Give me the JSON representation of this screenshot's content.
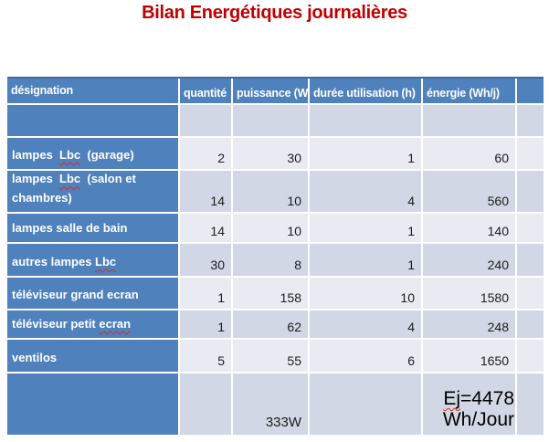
{
  "title": {
    "text": "Bilan Energétiques journalières"
  },
  "colors": {
    "title_red": "#C00000",
    "header_blue": "#4F81BD",
    "band_dark": "#D1D7E4",
    "band_light": "#E9EBF3",
    "spellcheck_red": "#DD2B1C"
  },
  "table": {
    "columns": [
      {
        "key": "designation",
        "label": "désignation"
      },
      {
        "key": "quantite",
        "label": "quantité"
      },
      {
        "key": "puissance",
        "label": "puissance (W)"
      },
      {
        "key": "duree",
        "label": "durée utilisation (h)"
      },
      {
        "key": "energie",
        "label": "énergie (Wh/j)"
      },
      {
        "key": "extra",
        "label": ""
      }
    ],
    "rows": [
      {
        "designation": [],
        "quantite": "",
        "puissance": "",
        "duree": "",
        "energie": [],
        "extra": ""
      },
      {
        "designation": [
          {
            "t": "lampes  "
          },
          {
            "t": "Lbc",
            "misspelled": true
          },
          {
            "t": "  (garage)"
          }
        ],
        "quantite": "2",
        "puissance": "30",
        "duree": "1",
        "energie": [
          {
            "t": "60"
          }
        ],
        "extra": ""
      },
      {
        "designation": [
          {
            "t": "lampes  "
          },
          {
            "t": "Lbc",
            "misspelled": true
          },
          {
            "t": "  (salon et chambres)"
          }
        ],
        "quantite": "14",
        "puissance": "10",
        "duree": "4",
        "energie": [
          {
            "t": "560"
          }
        ],
        "extra": ""
      },
      {
        "designation": [
          {
            "t": "lampes salle de bain"
          }
        ],
        "quantite": "14",
        "puissance": "10",
        "duree": "1",
        "energie": [
          {
            "t": "140"
          }
        ],
        "extra": ""
      },
      {
        "designation": [
          {
            "t": "autres lampes "
          },
          {
            "t": "Lbc",
            "misspelled": true
          }
        ],
        "quantite": "30",
        "puissance": "8",
        "duree": "1",
        "energie": [
          {
            "t": "240"
          }
        ],
        "extra": ""
      },
      {
        "designation": [
          {
            "t": "téléviseur grand ecran"
          }
        ],
        "quantite": "1",
        "puissance": "158",
        "duree": "10",
        "energie": [
          {
            "t": "1580"
          }
        ],
        "extra": ""
      },
      {
        "designation": [
          {
            "t": "téléviseur petit "
          },
          {
            "t": "ecran",
            "misspelled": true
          }
        ],
        "quantite": "1",
        "puissance": "62",
        "duree": "4",
        "energie": [
          {
            "t": "248"
          }
        ],
        "extra": ""
      },
      {
        "designation": [
          {
            "t": "ventilos"
          }
        ],
        "quantite": "5",
        "puissance": "55",
        "duree": "6",
        "energie": [
          {
            "t": "1650"
          }
        ],
        "extra": ""
      },
      {
        "designation": [],
        "quantite": "",
        "puissance": "333W",
        "duree": "",
        "energie": [
          {
            "t": "Ej",
            "misspelled": true
          },
          {
            "t": "=4478 Wh/Jour"
          }
        ],
        "extra": ""
      }
    ]
  }
}
